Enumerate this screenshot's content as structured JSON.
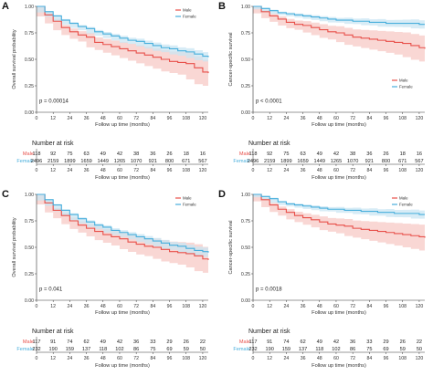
{
  "colors": {
    "male": "#e8504a",
    "male_band": "#f7c9c6",
    "female": "#47aedc",
    "female_band": "#c9e6f3"
  },
  "chart_data": [
    {
      "type": "line",
      "panel_label": "A",
      "ylabel": "Overall survival probability",
      "xlabel": "Follow up time (months)",
      "xticks": [
        "0",
        "12",
        "24",
        "36",
        "48",
        "60",
        "72",
        "84",
        "96",
        "108",
        "120"
      ],
      "yticks": [
        "0.00",
        "0.25",
        "0.50",
        "0.75",
        "1.00"
      ],
      "xlim": [
        0,
        124
      ],
      "ylim": [
        0,
        1
      ],
      "p_value": "p = 0.00014",
      "legend": [
        "Male",
        "Female"
      ],
      "legend_position": "top-right",
      "series": [
        {
          "name": "Male",
          "x": [
            0,
            6,
            12,
            18,
            24,
            30,
            36,
            42,
            48,
            54,
            60,
            66,
            72,
            78,
            84,
            90,
            96,
            102,
            108,
            114,
            120,
            124
          ],
          "y": [
            1.0,
            0.92,
            0.86,
            0.8,
            0.76,
            0.73,
            0.71,
            0.66,
            0.64,
            0.62,
            0.6,
            0.58,
            0.56,
            0.54,
            0.52,
            0.5,
            0.48,
            0.47,
            0.46,
            0.42,
            0.38,
            0.37
          ]
        },
        {
          "name": "Female",
          "x": [
            0,
            6,
            12,
            18,
            24,
            30,
            36,
            42,
            48,
            54,
            60,
            66,
            72,
            78,
            84,
            90,
            96,
            102,
            108,
            114,
            120,
            124
          ],
          "y": [
            1.0,
            0.95,
            0.91,
            0.87,
            0.84,
            0.81,
            0.79,
            0.76,
            0.74,
            0.72,
            0.7,
            0.68,
            0.67,
            0.65,
            0.63,
            0.61,
            0.6,
            0.58,
            0.57,
            0.55,
            0.53,
            0.52
          ]
        }
      ],
      "risk_table": {
        "title": "Number at risk",
        "xlabel": "Follow up time (months)",
        "rows": [
          {
            "label": "Male",
            "values": [
              "118",
              "92",
              "75",
              "63",
              "49",
              "42",
              "38",
              "36",
              "26",
              "18",
              "16"
            ]
          },
          {
            "label": "Female",
            "values": [
              "2496",
              "2159",
              "1899",
              "1659",
              "1449",
              "1265",
              "1070",
              "921",
              "800",
              "671",
              "567"
            ]
          }
        ]
      }
    },
    {
      "type": "line",
      "panel_label": "B",
      "ylabel": "Cancer-specific survival",
      "xlabel": "Follow up time (months)",
      "xticks": [
        "0",
        "12",
        "24",
        "36",
        "48",
        "60",
        "72",
        "84",
        "96",
        "108",
        "120"
      ],
      "yticks": [
        "0.00",
        "0.25",
        "0.50",
        "0.75",
        "1.00"
      ],
      "xlim": [
        0,
        124
      ],
      "ylim": [
        0,
        1
      ],
      "p_value": "p < 0.0001",
      "legend": [
        "Male",
        "Female"
      ],
      "legend_position": "bottom-right",
      "series": [
        {
          "name": "Male",
          "x": [
            0,
            6,
            12,
            18,
            24,
            30,
            36,
            42,
            48,
            54,
            60,
            66,
            72,
            78,
            84,
            90,
            96,
            102,
            108,
            114,
            120,
            124
          ],
          "y": [
            1.0,
            0.95,
            0.91,
            0.88,
            0.85,
            0.83,
            0.82,
            0.8,
            0.78,
            0.76,
            0.75,
            0.73,
            0.71,
            0.7,
            0.69,
            0.68,
            0.67,
            0.66,
            0.65,
            0.63,
            0.61,
            0.6
          ]
        },
        {
          "name": "Female",
          "x": [
            0,
            6,
            12,
            18,
            24,
            30,
            36,
            42,
            48,
            54,
            60,
            66,
            72,
            78,
            84,
            90,
            96,
            102,
            108,
            114,
            120,
            124
          ],
          "y": [
            1.0,
            0.98,
            0.96,
            0.94,
            0.93,
            0.92,
            0.91,
            0.9,
            0.89,
            0.88,
            0.87,
            0.87,
            0.86,
            0.86,
            0.85,
            0.85,
            0.84,
            0.84,
            0.84,
            0.84,
            0.83,
            0.83
          ]
        }
      ],
      "risk_table": {
        "title": "Number at risk",
        "xlabel": "Follow up time (months)",
        "rows": [
          {
            "label": "Male",
            "values": [
              "118",
              "92",
              "75",
              "63",
              "49",
              "42",
              "38",
              "36",
              "26",
              "18",
              "16"
            ]
          },
          {
            "label": "Female",
            "values": [
              "2496",
              "2159",
              "1899",
              "1659",
              "1449",
              "1265",
              "1070",
              "921",
              "800",
              "671",
              "567"
            ]
          }
        ]
      }
    },
    {
      "type": "line",
      "panel_label": "C",
      "ylabel": "Overall survival probability",
      "xlabel": "Follow up time (months)",
      "xticks": [
        "0",
        "12",
        "24",
        "36",
        "48",
        "60",
        "72",
        "84",
        "96",
        "108",
        "120"
      ],
      "yticks": [
        "0.00",
        "0.25",
        "0.50",
        "0.75",
        "1.00"
      ],
      "xlim": [
        0,
        124
      ],
      "ylim": [
        0,
        1
      ],
      "p_value": "p = 0.041",
      "legend": [
        "Male",
        "Female"
      ],
      "legend_position": "top-right",
      "series": [
        {
          "name": "Male",
          "x": [
            0,
            6,
            12,
            18,
            24,
            30,
            36,
            42,
            48,
            54,
            60,
            66,
            72,
            78,
            84,
            90,
            96,
            102,
            108,
            114,
            120,
            124
          ],
          "y": [
            1.0,
            0.92,
            0.85,
            0.8,
            0.75,
            0.71,
            0.68,
            0.65,
            0.62,
            0.6,
            0.58,
            0.55,
            0.53,
            0.51,
            0.5,
            0.48,
            0.46,
            0.45,
            0.44,
            0.42,
            0.39,
            0.38
          ]
        },
        {
          "name": "Female",
          "x": [
            0,
            6,
            12,
            18,
            24,
            30,
            36,
            42,
            48,
            54,
            60,
            66,
            72,
            78,
            84,
            90,
            96,
            102,
            108,
            114,
            120,
            124
          ],
          "y": [
            1.0,
            0.95,
            0.9,
            0.85,
            0.81,
            0.77,
            0.74,
            0.71,
            0.69,
            0.66,
            0.64,
            0.62,
            0.6,
            0.58,
            0.56,
            0.54,
            0.52,
            0.51,
            0.49,
            0.47,
            0.46,
            0.45
          ]
        }
      ],
      "risk_table": {
        "title": "Number at risk",
        "xlabel": "Follow up time (months)",
        "rows": [
          {
            "label": "Male",
            "values": [
              "117",
              "91",
              "74",
              "62",
              "49",
              "42",
              "36",
              "33",
              "29",
              "26",
              "22"
            ]
          },
          {
            "label": "Female",
            "values": [
              "232",
              "190",
              "159",
              "137",
              "118",
              "102",
              "86",
              "75",
              "69",
              "59",
              "50"
            ]
          }
        ]
      }
    },
    {
      "type": "line",
      "panel_label": "D",
      "ylabel": "Cancer-specific survival",
      "xlabel": "Follow up time (months)",
      "xticks": [
        "0",
        "12",
        "24",
        "36",
        "48",
        "60",
        "72",
        "84",
        "96",
        "108",
        "120"
      ],
      "yticks": [
        "0.00",
        "0.25",
        "0.50",
        "0.75",
        "1.00"
      ],
      "xlim": [
        0,
        124
      ],
      "ylim": [
        0,
        1
      ],
      "p_value": "p = 0.0018",
      "legend": [
        "Male",
        "Female"
      ],
      "legend_position": "top-right",
      "series": [
        {
          "name": "Male",
          "x": [
            0,
            6,
            12,
            18,
            24,
            30,
            36,
            42,
            48,
            54,
            60,
            66,
            72,
            78,
            84,
            90,
            96,
            102,
            108,
            114,
            120,
            124
          ],
          "y": [
            1.0,
            0.95,
            0.9,
            0.86,
            0.83,
            0.8,
            0.78,
            0.76,
            0.74,
            0.72,
            0.71,
            0.7,
            0.68,
            0.67,
            0.66,
            0.65,
            0.64,
            0.63,
            0.62,
            0.61,
            0.6,
            0.59
          ]
        },
        {
          "name": "Female",
          "x": [
            0,
            6,
            12,
            18,
            24,
            30,
            36,
            42,
            48,
            54,
            60,
            66,
            72,
            78,
            84,
            90,
            96,
            102,
            108,
            114,
            120,
            124
          ],
          "y": [
            1.0,
            0.98,
            0.96,
            0.93,
            0.91,
            0.9,
            0.89,
            0.88,
            0.87,
            0.86,
            0.86,
            0.85,
            0.85,
            0.84,
            0.84,
            0.83,
            0.83,
            0.82,
            0.82,
            0.82,
            0.81,
            0.81
          ]
        }
      ],
      "risk_table": {
        "title": "Number at risk",
        "xlabel": "Follow up time (months)",
        "rows": [
          {
            "label": "Male",
            "values": [
              "117",
              "91",
              "74",
              "62",
              "49",
              "42",
              "36",
              "33",
              "29",
              "26",
              "22"
            ]
          },
          {
            "label": "Female",
            "values": [
              "232",
              "190",
              "159",
              "137",
              "118",
              "102",
              "86",
              "75",
              "69",
              "59",
              "50"
            ]
          }
        ]
      }
    }
  ]
}
